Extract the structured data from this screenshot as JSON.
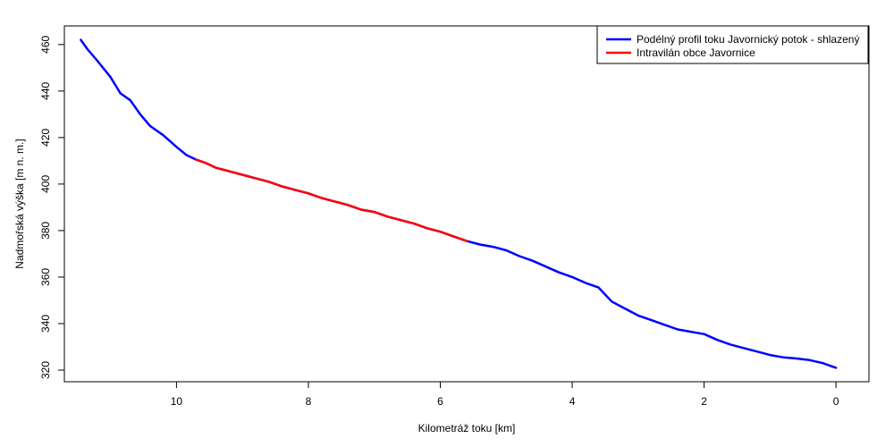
{
  "chart_data": {
    "type": "line",
    "title": "",
    "xlabel": "Kilometráž toku [km]",
    "ylabel": "Nadmořská výška [m n. m.]",
    "xlim": [
      11.7,
      -0.5
    ],
    "ylim": [
      315,
      468
    ],
    "x_axis_reversed": true,
    "x_ticks": [
      10,
      8,
      6,
      4,
      2,
      0
    ],
    "y_ticks": [
      320,
      340,
      360,
      380,
      400,
      420,
      440,
      460
    ],
    "grid": false,
    "legend_position": "top-right",
    "series": [
      {
        "name": "Podélný profil toku Javornický potok - shlazený",
        "color": "#0000ff",
        "x": [
          11.45,
          11.35,
          11.2,
          11.0,
          10.85,
          10.7,
          10.55,
          10.4,
          10.2,
          10.0,
          9.85,
          9.7,
          9.55,
          9.4,
          9.2,
          9.0,
          8.8,
          8.6,
          8.4,
          8.2,
          8.0,
          7.8,
          7.6,
          7.4,
          7.2,
          7.0,
          6.8,
          6.6,
          6.4,
          6.2,
          6.0,
          5.8,
          5.6,
          5.4,
          5.2,
          5.0,
          4.8,
          4.6,
          4.4,
          4.2,
          4.0,
          3.8,
          3.6,
          3.4,
          3.2,
          3.0,
          2.8,
          2.6,
          2.4,
          2.2,
          2.0,
          1.8,
          1.6,
          1.4,
          1.2,
          1.0,
          0.8,
          0.6,
          0.4,
          0.2,
          0.0
        ],
        "y": [
          462,
          458,
          453,
          446,
          439,
          436,
          430,
          425,
          421,
          416,
          412.5,
          410.5,
          409,
          407,
          405.5,
          404,
          402.5,
          401,
          399,
          397.5,
          396,
          394,
          392.5,
          391,
          389,
          388,
          386,
          384.5,
          383,
          381,
          379.5,
          377.5,
          375.5,
          374,
          373,
          371.5,
          369,
          367,
          364.5,
          362,
          360,
          357.5,
          355.5,
          349.5,
          346.5,
          343.5,
          341.5,
          339.5,
          337.5,
          336.5,
          335.5,
          333,
          331,
          329.5,
          328,
          326.5,
          325.5,
          325,
          324.3,
          323,
          321
        ]
      },
      {
        "name": "Intravilán obce Javornice",
        "color": "#ff0000",
        "x": [
          9.7,
          9.55,
          9.4,
          9.2,
          9.0,
          8.8,
          8.6,
          8.4,
          8.2,
          8.0,
          7.8,
          7.6,
          7.4,
          7.2,
          7.0,
          6.8,
          6.6,
          6.4,
          6.2,
          6.0,
          5.8,
          5.6
        ],
        "y": [
          410.5,
          409,
          407,
          405.5,
          404,
          402.5,
          401,
          399,
          397.5,
          396,
          394,
          392.5,
          391,
          389,
          388,
          386,
          384.5,
          383,
          381,
          379.5,
          377.5,
          375.5
        ]
      }
    ]
  }
}
